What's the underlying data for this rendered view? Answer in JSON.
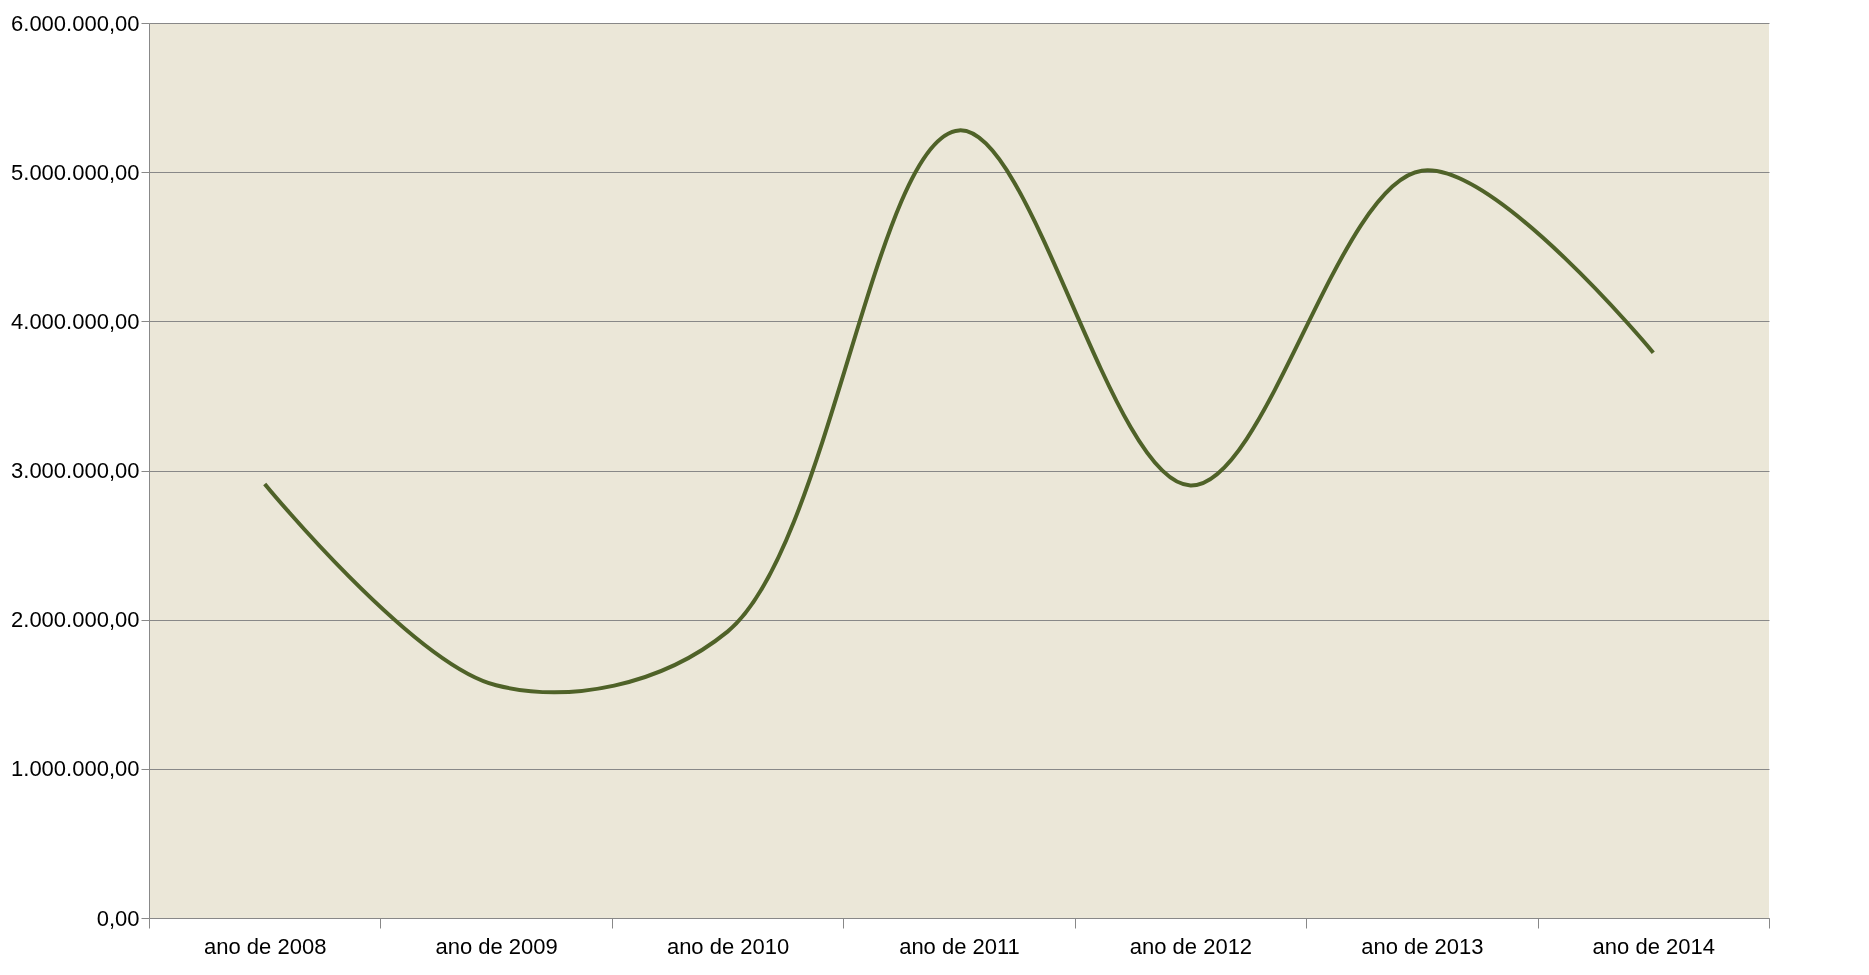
{
  "chart_data": {
    "type": "line",
    "categories": [
      "ano de 2008",
      "ano de 2009",
      "ano de 2010",
      "ano de 2011",
      "ano de 2012",
      "ano de 2013",
      "ano de 2014"
    ],
    "series": [
      {
        "color": "#4f6228",
        "values": [
          2910000,
          1560000,
          1920000,
          5280000,
          2900000,
          5010000,
          3790000
        ]
      }
    ],
    "ylim": [
      0,
      6000000
    ],
    "yticks": [
      {
        "value": 0,
        "label": "0,00"
      },
      {
        "value": 1000000,
        "label": "1.000.000,00"
      },
      {
        "value": 2000000,
        "label": "2.000.000,00"
      },
      {
        "value": 3000000,
        "label": "3.000.000,00"
      },
      {
        "value": 4000000,
        "label": "4.000.000,00"
      },
      {
        "value": 5000000,
        "label": "5.000.000,00"
      },
      {
        "value": 6000000,
        "label": "6.000.000,00"
      }
    ],
    "grid": "y",
    "legend": false,
    "marker": "none",
    "line_style": "solid"
  }
}
